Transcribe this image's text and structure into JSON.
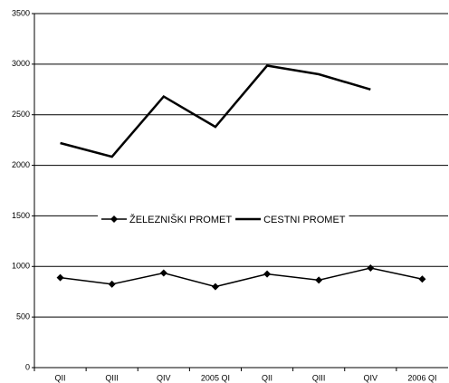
{
  "chart_data": {
    "type": "line",
    "categories": [
      "QII",
      "QIII",
      "QIV",
      "2005 QI",
      "QII",
      "QIII",
      "QIV",
      "2006 QI"
    ],
    "series": [
      {
        "name": "ŽELEZNIŠKI PROMET",
        "color": "#000000",
        "marker": "diamond",
        "values": [
          890,
          825,
          935,
          800,
          925,
          865,
          985,
          875
        ]
      },
      {
        "name": "CESTNI PROMET",
        "color": "#000000",
        "values": [
          2220,
          2085,
          2680,
          2380,
          2985,
          2900,
          2750,
          null
        ]
      }
    ],
    "ylim": [
      0,
      3500
    ],
    "yticks": [
      0,
      500,
      1000,
      1500,
      2000,
      2500,
      3000,
      3500
    ],
    "grid": true,
    "legend": "center"
  }
}
